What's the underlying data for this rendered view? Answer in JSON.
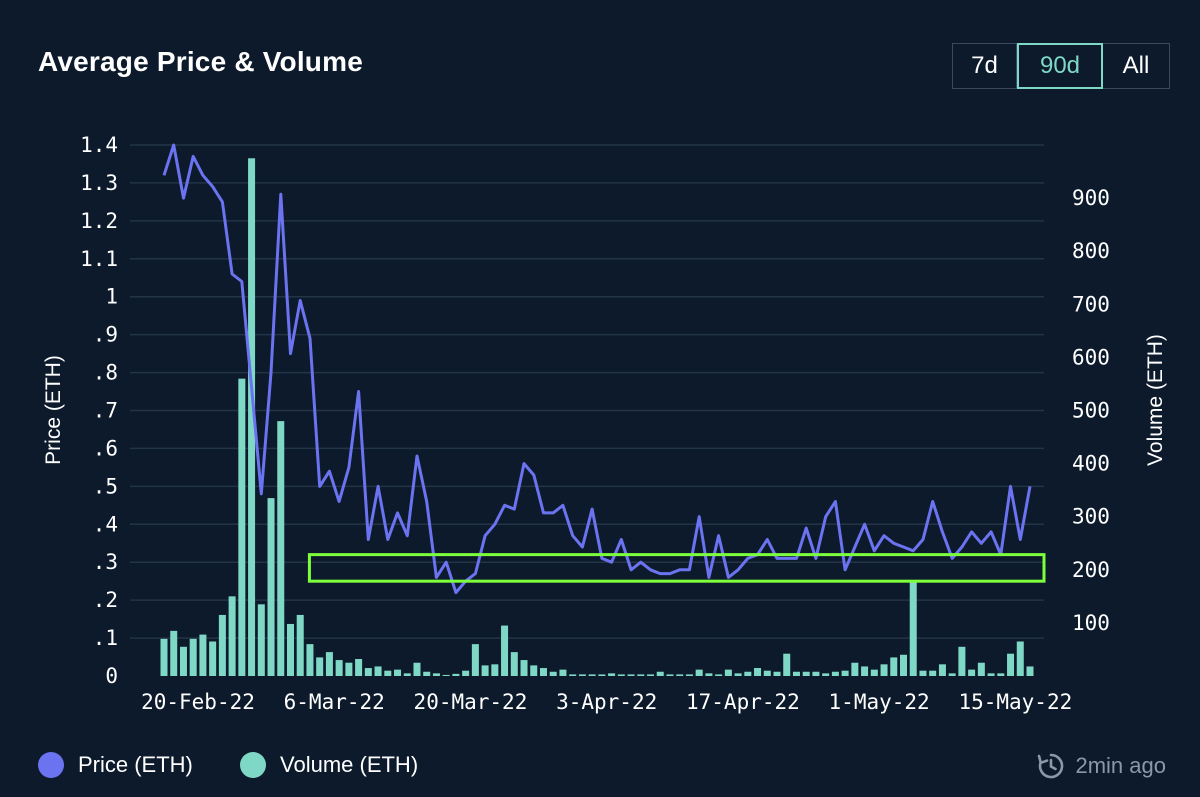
{
  "header": {
    "title": "Average Price & Volume"
  },
  "range_buttons": [
    {
      "label": "7d",
      "active": false
    },
    {
      "label": "90d",
      "active": true
    },
    {
      "label": "All",
      "active": false
    }
  ],
  "legend": {
    "price_label": "Price (ETH)",
    "volume_label": "Volume (ETH)"
  },
  "footer": {
    "updated_label": "2min ago",
    "updated_icon": "refresh-clock-icon"
  },
  "colors": {
    "background": "#0c1a2b",
    "price": "#6b73f0",
    "volume": "#7fd8c6",
    "highlight": "#7dff3c",
    "grid": "#233447"
  },
  "chart_data": {
    "type": "bar+line",
    "title": "Average Price & Volume",
    "ylabel": "Price (ETH)",
    "y2label": "Volume (ETH)",
    "ylim": [
      0,
      1.4
    ],
    "y2lim": [
      0,
      1000
    ],
    "yticks": [
      0,
      0.1,
      0.2,
      0.3,
      0.4,
      0.5,
      0.6,
      0.7,
      0.8,
      0.9,
      1.0,
      1.1,
      1.2,
      1.3,
      1.4
    ],
    "ytick_labels": [
      "0",
      ".1",
      ".2",
      ".3",
      ".4",
      ".5",
      ".6",
      ".7",
      ".8",
      ".9",
      "1",
      "1.1",
      "1.2",
      "1.3",
      "1.4"
    ],
    "y2ticks": [
      100,
      200,
      300,
      400,
      500,
      600,
      700,
      800,
      900
    ],
    "y2tick_labels": [
      "100",
      "200",
      "300",
      "400",
      "500",
      "600",
      "700",
      "800",
      "900"
    ],
    "xtick_labels": [
      "20-Feb-22",
      "6-Mar-22",
      "20-Mar-22",
      "3-Apr-22",
      "17-Apr-22",
      "1-May-22",
      "15-May-22"
    ],
    "xtick_days": [
      0,
      14,
      28,
      42,
      56,
      70,
      84
    ],
    "start_date": "20-Feb-22",
    "days": [
      0,
      1,
      2,
      3,
      4,
      5,
      6,
      7,
      8,
      9,
      10,
      11,
      12,
      13,
      14,
      15,
      16,
      17,
      18,
      19,
      20,
      21,
      22,
      23,
      24,
      25,
      26,
      27,
      28,
      29,
      30,
      31,
      32,
      33,
      34,
      35,
      36,
      37,
      38,
      39,
      40,
      41,
      42,
      43,
      44,
      45,
      46,
      47,
      48,
      49,
      50,
      51,
      52,
      53,
      54,
      55,
      56,
      57,
      58,
      59,
      60,
      61,
      62,
      63,
      64,
      65,
      66,
      67,
      68,
      69,
      70,
      71,
      72,
      73,
      74,
      75,
      76,
      77,
      78,
      79,
      80,
      81,
      82,
      83,
      84,
      85,
      86,
      87,
      88,
      89
    ],
    "series": [
      {
        "name": "Price (ETH)",
        "axis": "left",
        "type": "line",
        "values": [
          1.32,
          1.4,
          1.26,
          1.37,
          1.32,
          1.29,
          1.25,
          1.06,
          1.04,
          0.76,
          0.48,
          0.8,
          1.27,
          0.85,
          0.99,
          0.89,
          0.5,
          0.54,
          0.46,
          0.55,
          0.75,
          0.36,
          0.5,
          0.36,
          0.43,
          0.37,
          0.58,
          0.46,
          0.26,
          0.3,
          0.22,
          0.25,
          0.27,
          0.37,
          0.4,
          0.45,
          0.44,
          0.56,
          0.53,
          0.43,
          0.43,
          0.45,
          0.37,
          0.34,
          0.44,
          0.31,
          0.3,
          0.36,
          0.28,
          0.3,
          0.28,
          0.27,
          0.27,
          0.28,
          0.28,
          0.42,
          0.26,
          0.37,
          0.26,
          0.28,
          0.31,
          0.32,
          0.36,
          0.31,
          0.31,
          0.31,
          0.39,
          0.31,
          0.42,
          0.46,
          0.28,
          0.34,
          0.4,
          0.33,
          0.37,
          0.35,
          0.34,
          0.33,
          0.36,
          0.46,
          0.38,
          0.31,
          0.34,
          0.38,
          0.35,
          0.38,
          0.32,
          0.5,
          0.36,
          0.5
        ]
      },
      {
        "name": "Volume (ETH)",
        "axis": "right",
        "type": "bar",
        "values": [
          70,
          85,
          55,
          70,
          78,
          65,
          115,
          150,
          560,
          975,
          135,
          335,
          480,
          98,
          115,
          60,
          35,
          45,
          30,
          25,
          32,
          15,
          18,
          10,
          12,
          5,
          25,
          8,
          5,
          2,
          4,
          10,
          60,
          20,
          22,
          95,
          45,
          30,
          20,
          15,
          8,
          12,
          3,
          3,
          3,
          3,
          5,
          3,
          3,
          3,
          3,
          8,
          3,
          3,
          3,
          12,
          5,
          3,
          12,
          5,
          8,
          15,
          10,
          8,
          42,
          8,
          8,
          8,
          5,
          8,
          10,
          25,
          18,
          12,
          22,
          35,
          40,
          178,
          10,
          10,
          22,
          5,
          55,
          12,
          25,
          5,
          5,
          42,
          65,
          18
        ]
      }
    ],
    "annotation": {
      "type": "rectangle",
      "y_from": 0.25,
      "y_to": 0.32,
      "x_from_day": 17,
      "x_to_day": 89,
      "color": "#7dff3c"
    }
  }
}
